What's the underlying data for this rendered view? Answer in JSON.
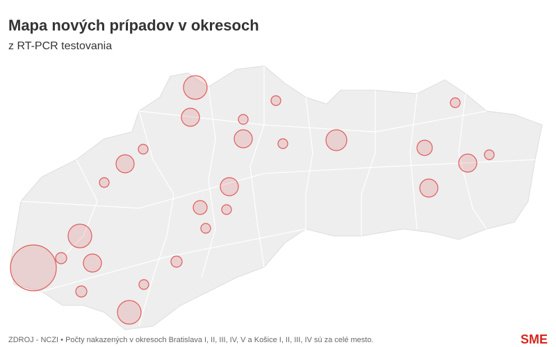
{
  "header": {
    "title": "Mapa nových prípadov v okresoch",
    "subtitle": "z RT-PCR testovania"
  },
  "footer": {
    "source": "ZDROJ - NCZI • Počty nakazených v okresoch Bratislava I, II, III, IV, V a Košice I, II, III, IV sú za celé mesto.",
    "logo": "SME"
  }
}
